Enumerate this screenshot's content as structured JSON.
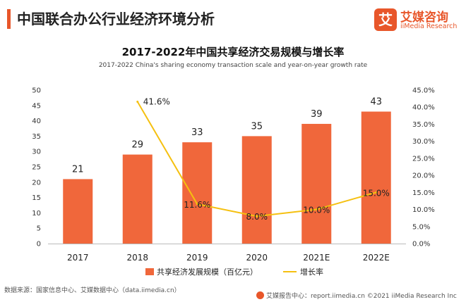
{
  "page_title": "中国联合办公行业经济环境分析",
  "logo": {
    "mark": "艾",
    "name_cn": "艾媒咨询",
    "name_en": "iiMedia Research"
  },
  "colors": {
    "accent": "#e8562a",
    "bar": "#f0673b",
    "line": "#f5c010",
    "axis": "#bbbbbb"
  },
  "footer": {
    "source": "数据来源：国家信息中心、艾媒数据中心（data.iimedia.cn）",
    "credit": "艾媒报告中心：report.iimedia.cn  ©2021  iiMedia Research  Inc"
  },
  "chart_data": {
    "type": "bar",
    "title": "2017-2022年中国共享经济交易规模与增长率",
    "subtitle": "2017-2022 China's sharing economy transaction scale and year-on-year growth rate",
    "categories": [
      "2017",
      "2018",
      "2019",
      "2020",
      "2021E",
      "2022E"
    ],
    "series": [
      {
        "name": "共享经济发展规模（百亿元）",
        "type": "bar",
        "axis": "left",
        "values": [
          21,
          29,
          33,
          35,
          39,
          43
        ]
      },
      {
        "name": "增长率",
        "type": "line",
        "axis": "right",
        "values": [
          null,
          41.6,
          11.6,
          8.0,
          10.0,
          15.0
        ]
      }
    ],
    "y_left": {
      "min": 0,
      "max": 50,
      "ticks": [
        "0",
        "5",
        "10",
        "15",
        "20",
        "25",
        "30",
        "35",
        "40",
        "45",
        "50"
      ]
    },
    "y_right": {
      "min": 0,
      "max": 45,
      "ticks": [
        "0.0%",
        "5.0%",
        "10.0%",
        "15.0%",
        "20.0%",
        "25.0%",
        "30.0%",
        "35.0%",
        "40.0%",
        "45.0%"
      ]
    },
    "bar_labels": [
      "21",
      "29",
      "33",
      "35",
      "39",
      "43"
    ],
    "line_labels": [
      "",
      "41.6%",
      "11.6%",
      "8.0%",
      "10.0%",
      "15.0%"
    ],
    "grid": false,
    "legend_position": "bottom"
  }
}
